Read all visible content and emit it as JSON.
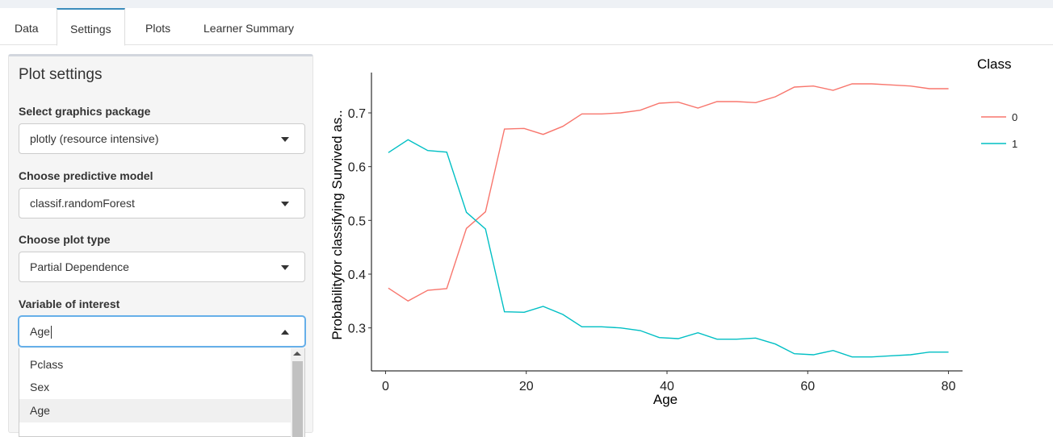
{
  "tabs": [
    {
      "label": "Data"
    },
    {
      "label": "Settings"
    },
    {
      "label": "Plots"
    },
    {
      "label": "Learner Summary"
    }
  ],
  "active_tab": "Settings",
  "panel": {
    "title": "Plot settings",
    "graphics": {
      "label": "Select graphics package",
      "value": "plotly (resource intensive)"
    },
    "model": {
      "label": "Choose predictive model",
      "value": "classif.randomForest"
    },
    "plot_type": {
      "label": "Choose plot type",
      "value": "Partial Dependence"
    },
    "variable": {
      "label": "Variable of interest",
      "value": "Age"
    },
    "options": [
      "Pclass",
      "Sex",
      "Age"
    ]
  },
  "chart_data": {
    "type": "line",
    "xlabel": "Age",
    "ylabel": "Probabilityfor classifying Survived as..",
    "xlim": [
      -2,
      82
    ],
    "ylim": [
      0.22,
      0.775
    ],
    "xticks": [
      0,
      20,
      40,
      60,
      80
    ],
    "yticks": [
      0.3,
      0.4,
      0.5,
      0.6,
      0.7
    ],
    "legend_title": "Class",
    "legend_position": "right",
    "grid": false,
    "x": [
      0.4,
      3.2,
      6.0,
      8.7,
      11.5,
      14.2,
      16.9,
      19.7,
      22.4,
      25.2,
      27.9,
      30.7,
      33.4,
      36.2,
      38.9,
      41.6,
      44.4,
      47.1,
      49.9,
      52.6,
      55.4,
      58.1,
      60.8,
      63.6,
      66.3,
      69.1,
      71.8,
      74.6,
      77.3,
      80.0
    ],
    "series": [
      {
        "name": "0",
        "color": "#f8766d",
        "values": [
          0.374,
          0.35,
          0.37,
          0.373,
          0.485,
          0.516,
          0.67,
          0.671,
          0.66,
          0.675,
          0.698,
          0.698,
          0.7,
          0.705,
          0.718,
          0.72,
          0.709,
          0.721,
          0.721,
          0.719,
          0.73,
          0.748,
          0.75,
          0.742,
          0.754,
          0.754,
          0.752,
          0.75,
          0.745,
          0.745
        ]
      },
      {
        "name": "1",
        "color": "#00bfc4",
        "values": [
          0.626,
          0.65,
          0.63,
          0.627,
          0.515,
          0.484,
          0.33,
          0.329,
          0.34,
          0.325,
          0.302,
          0.302,
          0.3,
          0.295,
          0.282,
          0.28,
          0.291,
          0.279,
          0.279,
          0.281,
          0.27,
          0.252,
          0.25,
          0.258,
          0.246,
          0.246,
          0.248,
          0.25,
          0.255,
          0.255
        ]
      }
    ]
  }
}
